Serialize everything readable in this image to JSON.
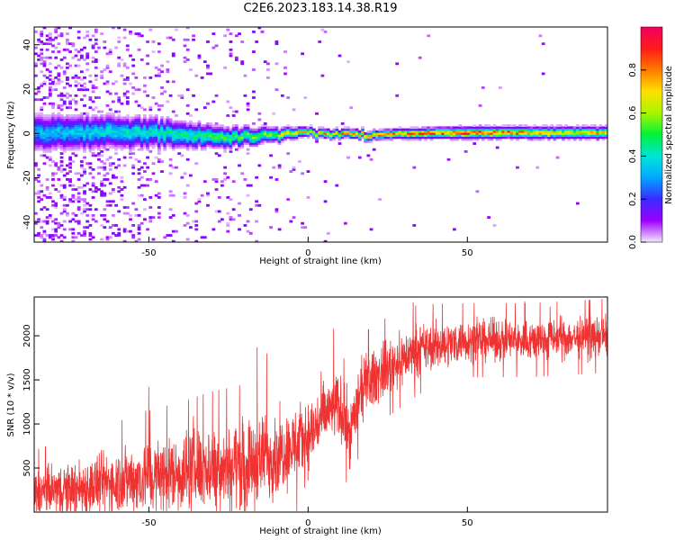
{
  "figure": {
    "title": "C2E6.2023.183.14.38.R19"
  },
  "chart_data": [
    {
      "type": "heatmap",
      "title": "C2E6.2023.183.14.38.R19",
      "xlabel": "Height of straight line (km)",
      "ylabel": "Frequency (Hz)",
      "xlim": [
        -86,
        94
      ],
      "ylim": [
        -49,
        48
      ],
      "x_ticks": [
        -50,
        0,
        50
      ],
      "y_ticks": [
        -40,
        -20,
        0,
        20,
        40
      ],
      "grid": false,
      "colorbar": {
        "label": "Normalized spectral amplitude",
        "range": [
          0,
          1
        ],
        "ticks": [
          "0.0",
          "0.2",
          "0.4",
          "0.6",
          "0.8"
        ],
        "colormap": [
          "#f5e8ff",
          "#9b00ff",
          "#3a2bff",
          "#00a8ff",
          "#00e5d8",
          "#00f23a",
          "#a9f500",
          "#ffe000",
          "#ff7a00",
          "#ff1a1a",
          "#f00060"
        ]
      },
      "band_center_hz": [
        {
          "x": -85,
          "f": 0
        },
        {
          "x": -50,
          "f": 0
        },
        {
          "x": -30,
          "f": -2
        },
        {
          "x": -10,
          "f": -1
        },
        {
          "x": 0,
          "f": 0
        },
        {
          "x": 20,
          "f": -1
        },
        {
          "x": 40,
          "f": 0
        },
        {
          "x": 94,
          "f": 0
        }
      ],
      "band_halfwidth_hz": [
        {
          "x": -85,
          "w": 6
        },
        {
          "x": -50,
          "w": 5
        },
        {
          "x": -20,
          "w": 3
        },
        {
          "x": 0,
          "w": 1.5
        },
        {
          "x": 20,
          "w": 1.5
        },
        {
          "x": 50,
          "w": 2
        },
        {
          "x": 94,
          "w": 2
        }
      ],
      "peak_amplitude": [
        {
          "x": -85,
          "a": 0.35
        },
        {
          "x": -50,
          "a": 0.45
        },
        {
          "x": -20,
          "a": 0.55
        },
        {
          "x": 0,
          "a": 0.75
        },
        {
          "x": 20,
          "a": 0.85
        },
        {
          "x": 50,
          "a": 0.9
        },
        {
          "x": 70,
          "a": 0.8
        },
        {
          "x": 94,
          "a": 0.75
        }
      ],
      "background_noise": [
        {
          "x": -85,
          "a": 0.25
        },
        {
          "x": -70,
          "a": 0.2
        },
        {
          "x": -50,
          "a": 0.08
        },
        {
          "x": -20,
          "a": 0.04
        },
        {
          "x": 0,
          "a": 0.01
        },
        {
          "x": 94,
          "a": 0.0
        }
      ]
    },
    {
      "type": "line",
      "xlabel": "Height of straight line (km)",
      "ylabel": "SNR (10 * v/v)",
      "xlim": [
        -86,
        94
      ],
      "ylim": [
        0,
        2440
      ],
      "x_ticks": [
        -50,
        0,
        50
      ],
      "y_ticks": [
        500,
        1000,
        1500,
        2000
      ],
      "grid": false,
      "color": "#ee3333",
      "series_mean": [
        {
          "x": -86,
          "y": 220
        },
        {
          "x": -70,
          "y": 280
        },
        {
          "x": -60,
          "y": 350
        },
        {
          "x": -50,
          "y": 400
        },
        {
          "x": -40,
          "y": 450
        },
        {
          "x": -30,
          "y": 520
        },
        {
          "x": -20,
          "y": 550
        },
        {
          "x": -10,
          "y": 650
        },
        {
          "x": 0,
          "y": 850
        },
        {
          "x": 5,
          "y": 1100
        },
        {
          "x": 10,
          "y": 1200
        },
        {
          "x": 13,
          "y": 900
        },
        {
          "x": 17,
          "y": 1400
        },
        {
          "x": 25,
          "y": 1650
        },
        {
          "x": 35,
          "y": 1850
        },
        {
          "x": 50,
          "y": 1950
        },
        {
          "x": 70,
          "y": 1950
        },
        {
          "x": 94,
          "y": 2000
        }
      ],
      "series_spread": [
        {
          "x": -86,
          "y": 160
        },
        {
          "x": -50,
          "y": 250
        },
        {
          "x": -20,
          "y": 300
        },
        {
          "x": 0,
          "y": 250
        },
        {
          "x": 20,
          "y": 200
        },
        {
          "x": 50,
          "y": 140
        },
        {
          "x": 94,
          "y": 140
        }
      ],
      "notable_spikes": [
        {
          "x": -51,
          "y": 1150
        },
        {
          "x": -50,
          "y": 1420
        },
        {
          "x": -36,
          "y": 1090
        },
        {
          "x": -16,
          "y": 1870
        },
        {
          "x": -13,
          "y": 1800
        },
        {
          "x": 8,
          "y": 2080
        },
        {
          "x": 13,
          "y": 490
        },
        {
          "x": 33,
          "y": 2380
        },
        {
          "x": 68,
          "y": 2390
        },
        {
          "x": 76,
          "y": 2330
        }
      ]
    }
  ]
}
